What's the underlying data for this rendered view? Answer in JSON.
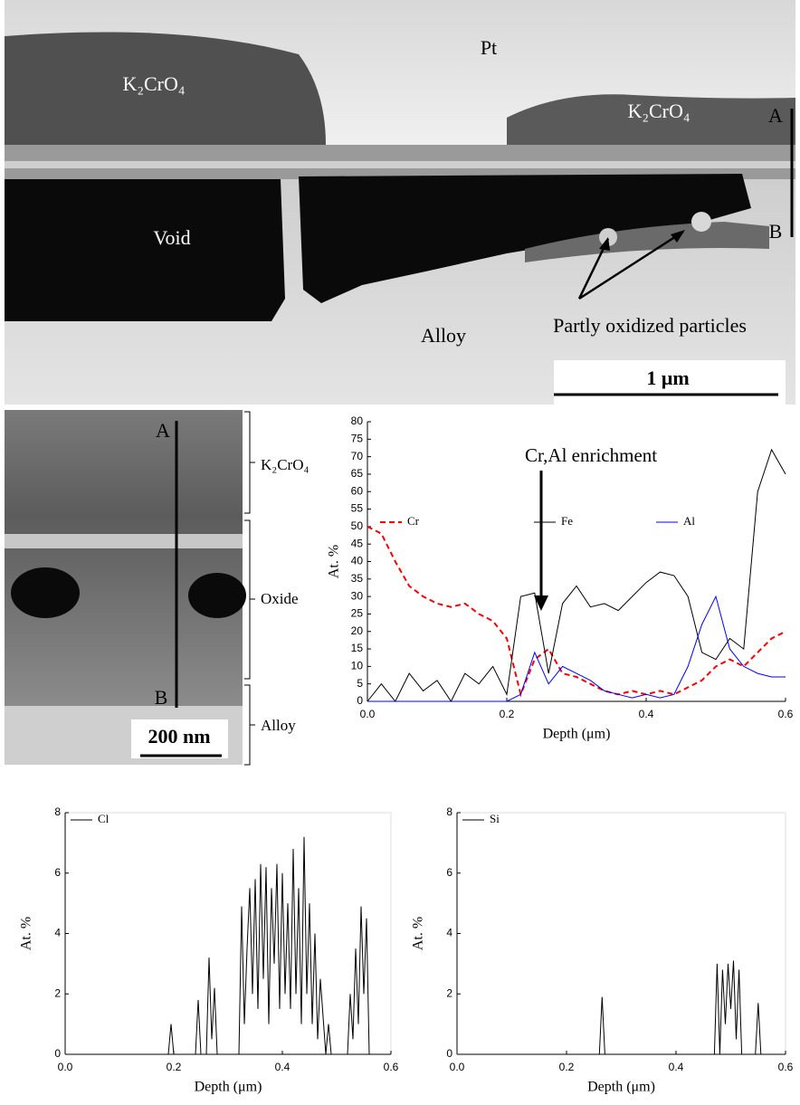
{
  "sem_top": {
    "pt": "Pt",
    "k2cro4_left": "K₂CrO₄",
    "k2cro4_right": "K₂CrO₄",
    "a": "A",
    "b": "B",
    "void": "Void",
    "alloy": "Alloy",
    "particles": "Partly oxidized particles",
    "scale": "1 μm"
  },
  "sem_bottom": {
    "a": "A",
    "b": "B",
    "scale": "200 nm",
    "layers": [
      "K₂CrO₄",
      "Oxide",
      "Alloy"
    ]
  },
  "chart_data": [
    {
      "type": "line",
      "xlabel": "Depth (μm)",
      "ylabel": "At. %",
      "annotation": "Cr,Al enrichment",
      "x": [
        0,
        0.02,
        0.04,
        0.06,
        0.08,
        0.1,
        0.12,
        0.14,
        0.16,
        0.18,
        0.2,
        0.22,
        0.24,
        0.26,
        0.28,
        0.3,
        0.32,
        0.34,
        0.36,
        0.38,
        0.4,
        0.42,
        0.44,
        0.46,
        0.48,
        0.5,
        0.52,
        0.54,
        0.56,
        0.58,
        0.6
      ],
      "series": [
        {
          "name": "Cr",
          "color": "#ff0000",
          "line_style": "dashed",
          "values": [
            50,
            48,
            40,
            33,
            30,
            28,
            27,
            28,
            25,
            23,
            18,
            2,
            12,
            15,
            8,
            7,
            5,
            3,
            2,
            3,
            2,
            3,
            2,
            4,
            6,
            10,
            12,
            10,
            14,
            18,
            20
          ]
        },
        {
          "name": "Fe",
          "color": "#000000",
          "line_style": "solid",
          "values": [
            0,
            5,
            0,
            8,
            3,
            6,
            0,
            8,
            5,
            10,
            2,
            30,
            31,
            8,
            28,
            33,
            27,
            28,
            26,
            30,
            34,
            37,
            36,
            30,
            14,
            12,
            18,
            15,
            60,
            72,
            65
          ]
        },
        {
          "name": "Al",
          "color": "#0000ff",
          "line_style": "solid",
          "values": [
            0,
            0,
            0,
            0,
            0,
            0,
            0,
            0,
            0,
            0,
            0,
            2,
            14,
            5,
            10,
            8,
            6,
            3,
            2,
            1,
            2,
            1,
            2,
            10,
            22,
            30,
            15,
            10,
            8,
            7,
            7
          ]
        }
      ],
      "xlim": [
        0,
        0.6
      ],
      "xticks": [
        {
          "value": 0,
          "label": "0.0"
        },
        0.2,
        0.4,
        0.6
      ],
      "ylim": [
        0,
        80
      ],
      "yticks": [
        0,
        5,
        10,
        15,
        20,
        25,
        30,
        35,
        40,
        45,
        50,
        55,
        60,
        65,
        70,
        75,
        80
      ]
    },
    {
      "type": "line",
      "xlabel": "Depth (μm)",
      "ylabel": "At. %",
      "x": [
        0,
        0.19,
        0.195,
        0.2,
        0.24,
        0.245,
        0.25,
        0.26,
        0.265,
        0.27,
        0.275,
        0.28,
        0.32,
        0.325,
        0.33,
        0.335,
        0.34,
        0.345,
        0.35,
        0.355,
        0.36,
        0.365,
        0.37,
        0.375,
        0.38,
        0.385,
        0.39,
        0.395,
        0.4,
        0.405,
        0.41,
        0.415,
        0.42,
        0.425,
        0.43,
        0.435,
        0.44,
        0.445,
        0.45,
        0.455,
        0.46,
        0.465,
        0.47,
        0.48,
        0.485,
        0.49,
        0.52,
        0.525,
        0.53,
        0.535,
        0.54,
        0.545,
        0.55,
        0.555,
        0.56,
        0.6
      ],
      "series": [
        {
          "name": "Cl",
          "color": "#000000",
          "line_style": "solid",
          "values": [
            0,
            0,
            1,
            0,
            0,
            1.8,
            0,
            0,
            3.2,
            0.5,
            2.2,
            0,
            0,
            4.9,
            1,
            3.5,
            5.5,
            2,
            5.8,
            1.5,
            6.3,
            2.5,
            6.2,
            1,
            5.5,
            3,
            6.3,
            1.5,
            6,
            2,
            5,
            1.5,
            6.8,
            2,
            5.5,
            1,
            7.2,
            2,
            5,
            1,
            4,
            0.5,
            2.5,
            0,
            1,
            0,
            0,
            2,
            0.5,
            3.5,
            1,
            4.9,
            2,
            4.5,
            0,
            0
          ]
        }
      ],
      "xlim": [
        0,
        0.6
      ],
      "xticks": [
        {
          "value": 0,
          "label": "0.0"
        },
        0.2,
        0.4,
        0.6
      ],
      "ylim": [
        0,
        8
      ],
      "yticks": [
        0,
        2,
        4,
        6,
        8
      ]
    },
    {
      "type": "line",
      "xlabel": "Depth (μm)",
      "ylabel": "At. %",
      "x": [
        0,
        0.26,
        0.265,
        0.27,
        0.47,
        0.475,
        0.48,
        0.485,
        0.49,
        0.495,
        0.5,
        0.505,
        0.51,
        0.515,
        0.52,
        0.545,
        0.55,
        0.555,
        0.6
      ],
      "series": [
        {
          "name": "Si",
          "color": "#000000",
          "line_style": "solid",
          "values": [
            0,
            0,
            1.9,
            0,
            0,
            3,
            0,
            2.8,
            1,
            3,
            1.5,
            3.1,
            0.5,
            2.8,
            0,
            0,
            1.7,
            0,
            0
          ]
        }
      ],
      "xlim": [
        0,
        0.6
      ],
      "xticks": [
        {
          "value": 0,
          "label": "0.0"
        },
        0.2,
        0.4,
        0.6
      ],
      "ylim": [
        0,
        8
      ],
      "yticks": [
        0,
        2,
        4,
        6,
        8
      ]
    }
  ]
}
